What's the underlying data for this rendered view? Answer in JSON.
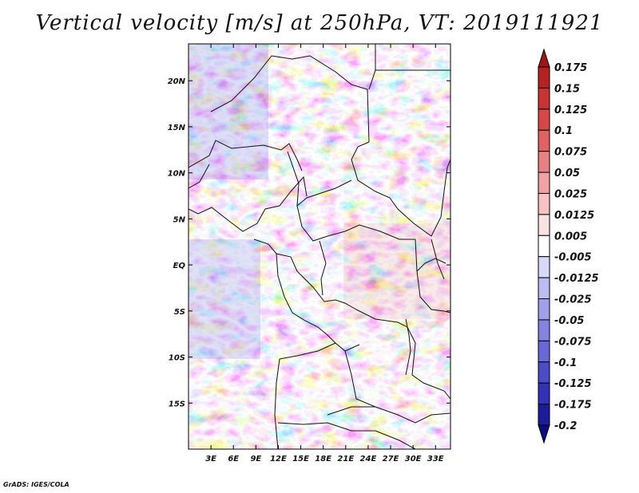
{
  "title": "Vertical velocity [m/s] at 250hPa, VT: 2019111921",
  "credit": "GrADS: IGES/COLA",
  "chart_data": {
    "type": "heatmap",
    "title": "Vertical velocity [m/s] at 250hPa, VT: 2019111921",
    "variable": "Vertical velocity",
    "units": "m/s",
    "level": "250hPa",
    "valid_time": "2019111921",
    "lon_range": [
      0,
      35
    ],
    "lat_range": [
      -20,
      24
    ],
    "lon_ticks": [
      3,
      6,
      9,
      12,
      15,
      18,
      21,
      24,
      27,
      30,
      33
    ],
    "lon_tick_labels": [
      "3E",
      "6E",
      "9E",
      "12E",
      "15E",
      "18E",
      "21E",
      "24E",
      "27E",
      "30E",
      "33E"
    ],
    "lat_ticks": [
      20,
      15,
      10,
      5,
      0,
      -5,
      -10,
      -15
    ],
    "lat_tick_labels": [
      "20N",
      "15N",
      "10N",
      "5N",
      "EQ",
      "5S",
      "10S",
      "15S"
    ],
    "colorbar": {
      "labels": [
        "0.175",
        "0.15",
        "0.125",
        "0.1",
        "0.075",
        "0.05",
        "0.025",
        "0.0125",
        "0.005",
        "-0.005",
        "-0.0125",
        "-0.025",
        "-0.05",
        "-0.075",
        "-0.1",
        "-0.125",
        "-0.175",
        "-0.2"
      ],
      "colors": [
        "#a01616",
        "#b52222",
        "#c83434",
        "#d64848",
        "#e06262",
        "#e88282",
        "#f0a2a2",
        "#f6c2c2",
        "#fbe2e2",
        "#ffffff",
        "#d8d8f8",
        "#bcbcf2",
        "#a0a0ea",
        "#8484e0",
        "#6868d6",
        "#4c4cc8",
        "#3232b4",
        "#1c1c9a",
        "#0c0c80"
      ]
    }
  },
  "colors": {
    "frame": "#000000",
    "border_lines": "#111111",
    "background": "#ffffff"
  }
}
